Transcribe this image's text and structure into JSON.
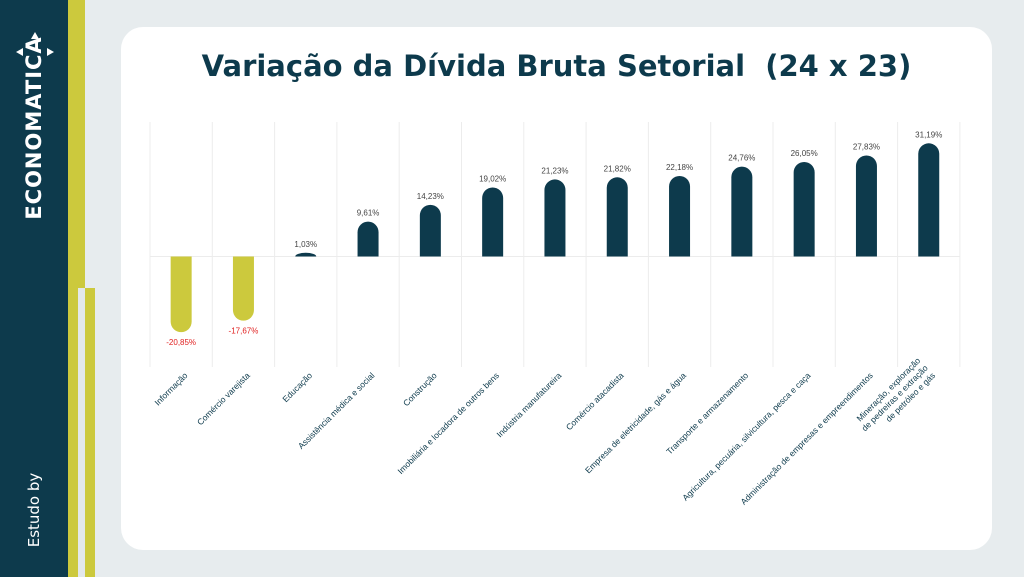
{
  "brand": {
    "name": "ECONOMATICA",
    "tagline": "Estudo by"
  },
  "colors": {
    "navy": "#0d3a4c",
    "lime": "#ccc93d",
    "negative_label": "#e02020",
    "background": "#e7ecee"
  },
  "chart_data": {
    "type": "bar",
    "title": "Variação da Dívida Bruta Setorial  (24 x 23)",
    "xlabel": "",
    "ylabel": "",
    "unit": "%",
    "ylim": [
      -25,
      35
    ],
    "grid": "vertical",
    "categories": [
      "Informação",
      "Comércio varejista",
      "Educação",
      "Assistência médica e social",
      "Construção",
      "Imobiliária e locadora de outros bens",
      "Indústria manufatureira",
      "Comércio atacadista",
      "Empresa de eletricidade, gás e água",
      "Transporte e armazenamento",
      "Agricultura, pecuária, silvicultura, pesca e caça",
      "Administração de empresas e empreendimentos",
      "Mineração, exploração de pedreiras e extração de petróleo e gás"
    ],
    "values": [
      -20.85,
      -17.67,
      1.03,
      9.61,
      14.23,
      19.02,
      21.23,
      21.82,
      22.18,
      24.76,
      26.05,
      27.83,
      31.19
    ],
    "value_labels": [
      "-20,85%",
      "-17,67%",
      "1,03%",
      "9,61%",
      "14,23%",
      "19,02%",
      "21,23%",
      "21,82%",
      "22,18%",
      "24,76%",
      "26,05%",
      "27,83%",
      "31,19%"
    ],
    "category_label_lines": [
      [
        "Informação"
      ],
      [
        "Comércio varejista"
      ],
      [
        "Educação"
      ],
      [
        "Assistência médica e social"
      ],
      [
        "Construção"
      ],
      [
        "Imobiliária e locadora de outros bens"
      ],
      [
        "Indústria manufatureira"
      ],
      [
        "Comércio atacadista"
      ],
      [
        "Empresa de eletricidade, gás e água"
      ],
      [
        "Transporte e armazenamento"
      ],
      [
        "Agricultura, pecuária, silvicultura, pesca e caça"
      ],
      [
        "Administração de empresas e empreendimentos"
      ],
      [
        "Mineração, exploração",
        "de pedreiras e extração",
        "de petróleo e gás"
      ]
    ]
  }
}
